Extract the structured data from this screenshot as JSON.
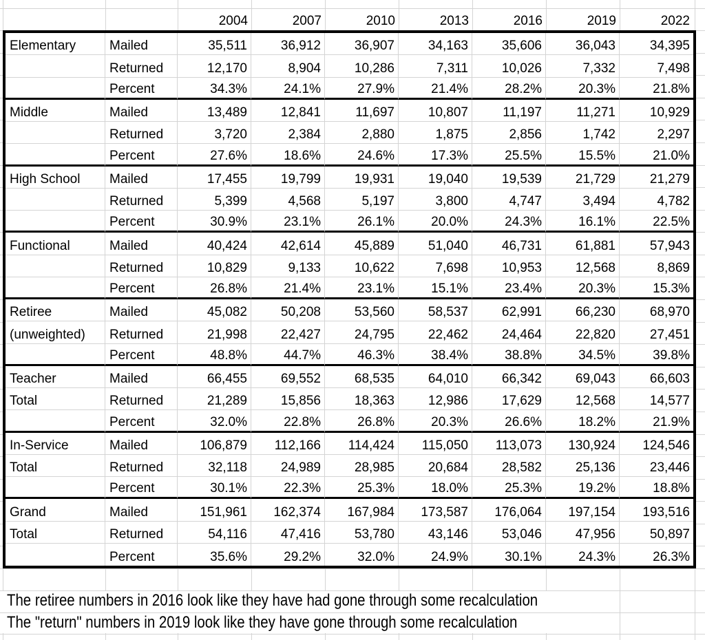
{
  "sheet": {
    "years": [
      "2004",
      "2007",
      "2010",
      "2013",
      "2016",
      "2019",
      "2022"
    ],
    "row_labels": [
      "Mailed",
      "Returned",
      "Percent"
    ],
    "sections": [
      {
        "name_lines": [
          "Elementary",
          ""
        ],
        "rows": [
          {
            "label": "Mailed",
            "values": [
              "35,511",
              "36,912",
              "36,907",
              "34,163",
              "35,606",
              "36,043",
              "34,395"
            ]
          },
          {
            "label": "Returned",
            "values": [
              "12,170",
              "8,904",
              "10,286",
              "7,311",
              "10,026",
              "7,332",
              "7,498"
            ]
          },
          {
            "label": "Percent",
            "values": [
              "34.3%",
              "24.1%",
              "27.9%",
              "21.4%",
              "28.2%",
              "20.3%",
              "21.8%"
            ]
          }
        ]
      },
      {
        "name_lines": [
          "Middle",
          ""
        ],
        "rows": [
          {
            "label": "Mailed",
            "values": [
              "13,489",
              "12,841",
              "11,697",
              "10,807",
              "11,197",
              "11,271",
              "10,929"
            ]
          },
          {
            "label": "Returned",
            "values": [
              "3,720",
              "2,384",
              "2,880",
              "1,875",
              "2,856",
              "1,742",
              "2,297"
            ]
          },
          {
            "label": "Percent",
            "values": [
              "27.6%",
              "18.6%",
              "24.6%",
              "17.3%",
              "25.5%",
              "15.5%",
              "21.0%"
            ]
          }
        ]
      },
      {
        "name_lines": [
          "High School",
          ""
        ],
        "rows": [
          {
            "label": "Mailed",
            "values": [
              "17,455",
              "19,799",
              "19,931",
              "19,040",
              "19,539",
              "21,729",
              "21,279"
            ]
          },
          {
            "label": "Returned",
            "values": [
              "5,399",
              "4,568",
              "5,197",
              "3,800",
              "4,747",
              "3,494",
              "4,782"
            ]
          },
          {
            "label": "Percent",
            "values": [
              "30.9%",
              "23.1%",
              "26.1%",
              "20.0%",
              "24.3%",
              "16.1%",
              "22.5%"
            ]
          }
        ]
      },
      {
        "name_lines": [
          "Functional",
          ""
        ],
        "rows": [
          {
            "label": "Mailed",
            "values": [
              "40,424",
              "42,614",
              "45,889",
              "51,040",
              "46,731",
              "61,881",
              "57,943"
            ]
          },
          {
            "label": "Returned",
            "values": [
              "10,829",
              "9,133",
              "10,622",
              "7,698",
              "10,953",
              "12,568",
              "8,869"
            ]
          },
          {
            "label": "Percent",
            "values": [
              "26.8%",
              "21.4%",
              "23.1%",
              "15.1%",
              "23.4%",
              "20.3%",
              "15.3%"
            ]
          }
        ]
      },
      {
        "name_lines": [
          "Retiree",
          "(unweighted)"
        ],
        "rows": [
          {
            "label": "Mailed",
            "values": [
              "45,082",
              "50,208",
              "53,560",
              "58,537",
              "62,991",
              "66,230",
              "68,970"
            ]
          },
          {
            "label": "Returned",
            "values": [
              "21,998",
              "22,427",
              "24,795",
              "22,462",
              "24,464",
              "22,820",
              "27,451"
            ]
          },
          {
            "label": "Percent",
            "values": [
              "48.8%",
              "44.7%",
              "46.3%",
              "38.4%",
              "38.8%",
              "34.5%",
              "39.8%"
            ]
          }
        ]
      },
      {
        "name_lines": [
          "Teacher",
          "Total"
        ],
        "rows": [
          {
            "label": "Mailed",
            "values": [
              "66,455",
              "69,552",
              "68,535",
              "64,010",
              "66,342",
              "69,043",
              "66,603"
            ]
          },
          {
            "label": "Returned",
            "values": [
              "21,289",
              "15,856",
              "18,363",
              "12,986",
              "17,629",
              "12,568",
              "14,577"
            ]
          },
          {
            "label": "Percent",
            "values": [
              "32.0%",
              "22.8%",
              "26.8%",
              "20.3%",
              "26.6%",
              "18.2%",
              "21.9%"
            ]
          }
        ]
      },
      {
        "name_lines": [
          "In-Service",
          "Total"
        ],
        "rows": [
          {
            "label": "Mailed",
            "values": [
              "106,879",
              "112,166",
              "114,424",
              "115,050",
              "113,073",
              "130,924",
              "124,546"
            ]
          },
          {
            "label": "Returned",
            "values": [
              "32,118",
              "24,989",
              "28,985",
              "20,684",
              "28,582",
              "25,136",
              "23,446"
            ]
          },
          {
            "label": "Percent",
            "values": [
              "30.1%",
              "22.3%",
              "25.3%",
              "18.0%",
              "25.3%",
              "19.2%",
              "18.8%"
            ]
          }
        ]
      },
      {
        "name_lines": [
          "Grand",
          "Total"
        ],
        "rows": [
          {
            "label": "Mailed",
            "values": [
              "151,961",
              "162,374",
              "167,984",
              "173,587",
              "176,064",
              "197,154",
              "193,516"
            ]
          },
          {
            "label": "Returned",
            "values": [
              "54,116",
              "47,416",
              "53,780",
              "43,146",
              "53,046",
              "47,956",
              "50,897"
            ]
          },
          {
            "label": "Percent",
            "values": [
              "35.6%",
              "29.2%",
              "32.0%",
              "24.9%",
              "30.1%",
              "24.3%",
              "26.3%"
            ]
          }
        ]
      }
    ],
    "notes": [
      "The retiree numbers in 2016 look like they have had gone through some recalculation",
      "The \"return\" numbers in 2019 look like they have gone through some recalculation"
    ],
    "colors": {
      "gridline": "#d4d4d4",
      "border": "#000000",
      "text": "#000000",
      "background": "#ffffff"
    }
  }
}
